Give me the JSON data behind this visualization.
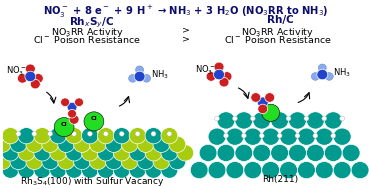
{
  "title_text": "NO$_3^-$ + 8 e$^-$ + 9 H$^+$ → NH$_3$ + 3 H$_2$O (NO$_3$RR to NH$_3$)",
  "title_color": "#0d0d6b",
  "title_fontsize": 7.2,
  "bg_color": "#ffffff",
  "left_header": "Rh$_x$S$_y$/C",
  "right_header": "Rh/C",
  "left_line1": "NO$_3$RR Activity",
  "left_line2": "Cl$^-$ Poison Resistance",
  "right_line1": "NO$_3$RR Activity",
  "right_line2": "Cl$^-$ Poison Resistance",
  "gt_symbol": ">",
  "left_caption": "Rh$_3$S$_4$(100) with Sulfur Vacancy",
  "right_caption": "Rh(211)",
  "header_fontsize": 7.5,
  "body_fontsize": 6.8,
  "caption_fontsize": 6.5,
  "dark_blue": "#0d0d6b",
  "black": "#000000",
  "teal": "#009b8e",
  "yellowgreen": "#a8cc10",
  "lime": "#22dd22",
  "red_o": "#cc2020",
  "blue_n": "#2244cc",
  "light_blue": "#88aaee",
  "white": "#ffffff"
}
